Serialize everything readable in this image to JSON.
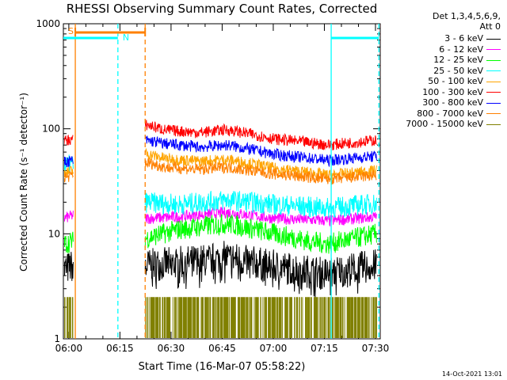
{
  "chart_data": {
    "type": "line",
    "title": "RHESSI Observing Summary Count Rates, Corrected",
    "xlabel": "Start Time (16-Mar-07 05:58:22)",
    "ylabel": "Corrected Count Rate (s⁻¹ detector⁻¹)",
    "yscale": "log",
    "ylim": [
      1,
      1000
    ],
    "yticks": [
      "1",
      "10",
      "100",
      "1000"
    ],
    "xlim_min": [
      0,
      93
    ],
    "x_tick_minutes": [
      1.6,
      16.6,
      31.6,
      46.6,
      61.6,
      76.6,
      91.6
    ],
    "x_tick_labels": [
      "06:00",
      "06:15",
      "06:30",
      "06:45",
      "07:00",
      "07:15",
      "07:30"
    ],
    "detectors": "Det 1,3,4,5,6,9,",
    "attenuator": "Att 0",
    "flag_bars": [
      {
        "label": "S",
        "color": "#ff8000"
      },
      {
        "label": "N",
        "color": "#00ffff"
      }
    ],
    "series": [
      {
        "name": "3 - 6 keV",
        "color": "#000000",
        "segments": [
          [
            [
              0,
              4.5
            ],
            [
              3,
              5
            ]
          ],
          [
            [
              24,
              5
            ],
            [
              40,
              5.5
            ],
            [
              48,
              6
            ],
            [
              60,
              5
            ],
            [
              76,
              4.2
            ],
            [
              92,
              5
            ]
          ]
        ]
      },
      {
        "name": "6 - 12 keV",
        "color": "#ff00ff",
        "segments": [
          [
            [
              0,
              14
            ],
            [
              3,
              15
            ]
          ],
          [
            [
              24,
              14
            ],
            [
              34,
              14.5
            ],
            [
              48,
              16
            ],
            [
              62,
              14
            ],
            [
              78,
              13.3
            ],
            [
              92,
              14.5
            ]
          ]
        ]
      },
      {
        "name": "12 - 25 keV",
        "color": "#00ff00",
        "segments": [
          [
            [
              0,
              8
            ],
            [
              3,
              8.5
            ]
          ],
          [
            [
              24,
              9
            ],
            [
              34,
              11
            ],
            [
              48,
              12.5
            ],
            [
              62,
              10
            ],
            [
              72,
              8.5
            ],
            [
              78,
              8
            ],
            [
              92,
              10
            ]
          ]
        ]
      },
      {
        "name": "25 - 50 keV",
        "color": "#00ffff",
        "segments": [
          [
            [
              0,
              44
            ],
            [
              3,
              46
            ]
          ],
          [
            [
              24,
              20
            ],
            [
              34,
              19
            ],
            [
              48,
              21
            ],
            [
              62,
              19
            ],
            [
              78,
              17.5
            ],
            [
              92,
              19.5
            ]
          ]
        ]
      },
      {
        "name": "50 - 100 keV",
        "color": "#ffa500",
        "segments": [
          [
            [
              0,
              38
            ],
            [
              3,
              40
            ]
          ],
          [
            [
              24,
              58
            ],
            [
              30,
              52
            ],
            [
              40,
              49
            ],
            [
              48,
              51
            ],
            [
              62,
              42
            ],
            [
              78,
              36
            ],
            [
              92,
              40
            ]
          ]
        ]
      },
      {
        "name": "100 - 300 keV",
        "color": "#ff0000",
        "segments": [
          [
            [
              0,
              76
            ],
            [
              3,
              80
            ]
          ],
          [
            [
              24,
              110
            ],
            [
              30,
              97
            ],
            [
              40,
              92
            ],
            [
              48,
              98
            ],
            [
              62,
              80
            ],
            [
              78,
              70
            ],
            [
              92,
              78
            ]
          ]
        ]
      },
      {
        "name": "300 - 800 keV",
        "color": "#0000ff",
        "segments": [
          [
            [
              0,
              48
            ],
            [
              3,
              50
            ]
          ],
          [
            [
              24,
              78
            ],
            [
              30,
              72
            ],
            [
              40,
              67
            ],
            [
              48,
              70
            ],
            [
              62,
              57
            ],
            [
              78,
              50
            ],
            [
              92,
              55
            ]
          ]
        ]
      },
      {
        "name": "800 - 7000 keV",
        "color": "#ff8000",
        "segments": [
          [
            [
              0,
              34
            ],
            [
              3,
              36
            ]
          ],
          [
            [
              24,
              48
            ],
            [
              30,
              43
            ],
            [
              40,
              41
            ],
            [
              48,
              43
            ],
            [
              62,
              37
            ],
            [
              78,
              33
            ],
            [
              92,
              36
            ]
          ]
        ]
      },
      {
        "name": "7000 - 15000 keV",
        "color": "#808000",
        "segments": [
          [
            [
              0,
              1.5
            ],
            [
              3,
              1.5
            ]
          ],
          [
            [
              24,
              1.5
            ],
            [
              92,
              1.5
            ]
          ]
        ]
      }
    ],
    "gaps": [
      [
        3.5,
        24
      ]
    ],
    "solid_markers_min": [
      {
        "x": 3.5,
        "color": "#ff8000"
      },
      {
        "x": 78.6,
        "color": "#00ffff"
      }
    ],
    "dashed_markers_min": [
      {
        "x": 16,
        "color": "#00ffff"
      },
      {
        "x": 24,
        "color": "#ff8000"
      },
      {
        "x": 92.6,
        "color": "#00ffff"
      }
    ]
  },
  "timestamp": "14-Oct-2021 13:01"
}
